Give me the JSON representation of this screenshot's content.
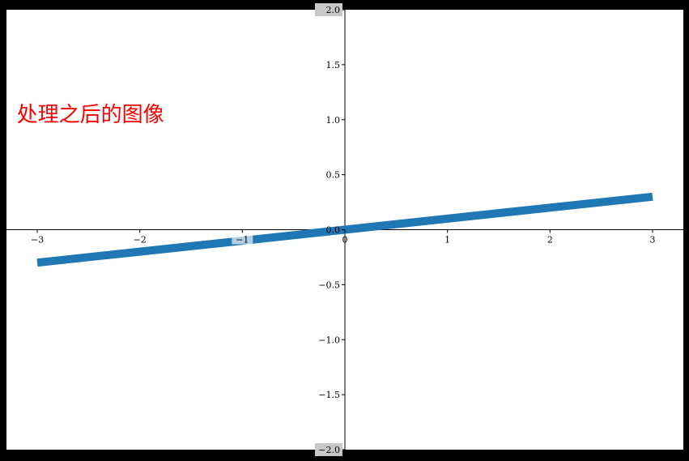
{
  "chart_data": {
    "type": "line",
    "title": "",
    "xlabel": "",
    "ylabel": "",
    "xlim": [
      -3.3,
      3.3
    ],
    "ylim": [
      -2.0,
      2.0
    ],
    "grid": false,
    "spines": "centered",
    "x_ticks": [
      {
        "value": -3,
        "label": "−3"
      },
      {
        "value": -2,
        "label": "−2"
      },
      {
        "value": -1,
        "label": "−1"
      },
      {
        "value": 0,
        "label": "0"
      },
      {
        "value": 1,
        "label": "1"
      },
      {
        "value": 2,
        "label": "2"
      },
      {
        "value": 3,
        "label": "3"
      }
    ],
    "y_ticks": [
      {
        "value": 2.0,
        "label": "2.0"
      },
      {
        "value": 1.5,
        "label": "1.5"
      },
      {
        "value": 1.0,
        "label": "1.0"
      },
      {
        "value": 0.5,
        "label": "0.5"
      },
      {
        "value": 0.0,
        "label": "0.0"
      },
      {
        "value": -0.5,
        "label": "−0.5"
      },
      {
        "value": -1.0,
        "label": "−1.0"
      },
      {
        "value": -1.5,
        "label": "−1.5"
      },
      {
        "value": -2.0,
        "label": "−2.0"
      }
    ],
    "series": [
      {
        "x": [
          -3.0,
          -2.0,
          -1.0,
          0.0,
          1.0,
          2.0,
          3.0
        ],
        "y": [
          -0.3,
          -0.2,
          -0.1,
          0.0,
          0.1,
          0.2,
          0.3
        ],
        "color": "#1f77b4"
      }
    ],
    "annotation": {
      "text": "处理之后的图像",
      "color": "#ff0000",
      "x": -3.2,
      "y": 1.0
    }
  },
  "colors": {
    "background": "#ffffff",
    "frame": "#000000",
    "axis": "#000000",
    "label_box": "#c8c8c8"
  }
}
